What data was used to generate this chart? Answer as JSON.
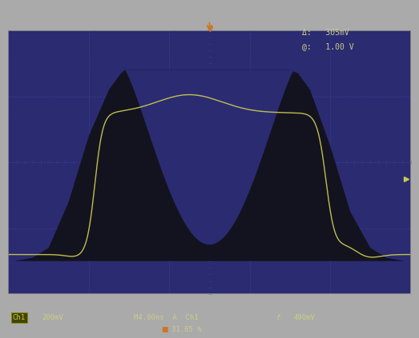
{
  "bg_color": "#2b2b72",
  "outer_bg": "#aaaaaa",
  "border_color": "#999999",
  "grid_color": "#4444aa",
  "text_color": "#cccc88",
  "yellow_color": "#c8c850",
  "orange_color": "#cc7722",
  "envelope_color": "#111118",
  "ch1_label": "Ch1  200mV",
  "time_label": "M4.00ns  A  Ch1  f  490mV",
  "duty_label": "31.65 %",
  "meas1": "Δ:   305mV",
  "meas2": "@:   1.00 V",
  "figsize": [
    5.23,
    4.23
  ],
  "dpi": 100,
  "xlim": [
    0,
    10
  ],
  "ylim": [
    0,
    8
  ]
}
